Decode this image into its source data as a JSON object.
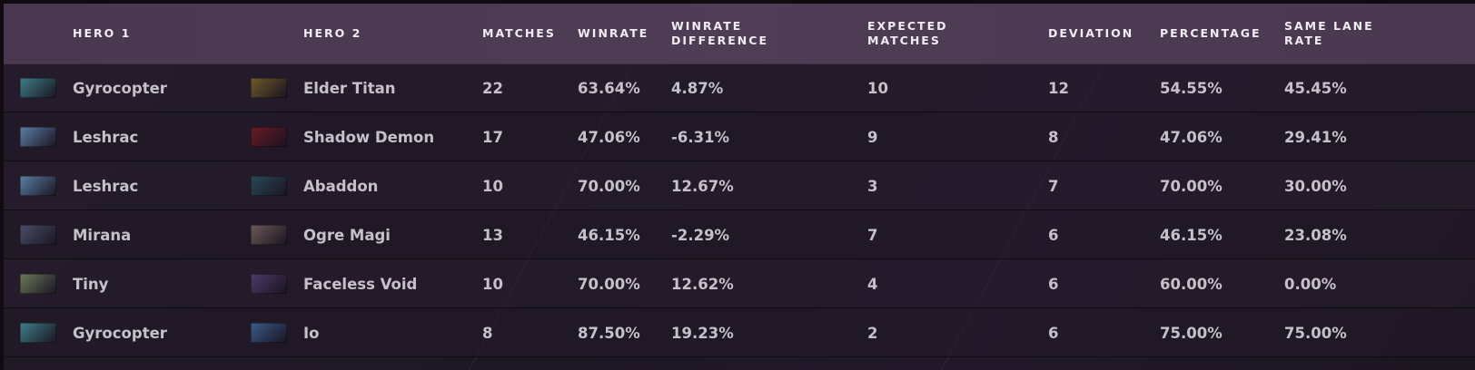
{
  "headers": {
    "hero1": "HERO 1",
    "hero2": "HERO 2",
    "matches": "MATCHES",
    "winrate": "WINRATE",
    "winrate_diff_line1": "WINRATE",
    "winrate_diff_line2": "DIFFERENCE",
    "expected_line1": "EXPECTED",
    "expected_line2": "MATCHES",
    "deviation": "DEVIATION",
    "percentage": "PERCENTAGE",
    "same_lane_line1": "SAME LANE",
    "same_lane_line2": "RATE"
  },
  "rows": [
    {
      "hero1": "Gyrocopter",
      "hero1_icon": "gyrocopter-portrait-icon",
      "hero1_color": "#3f7f8a",
      "hero2": "Elder Titan",
      "hero2_icon": "elder-titan-portrait-icon",
      "hero2_color": "#6e5a2a",
      "matches": "22",
      "winrate": "63.64%",
      "winrate_diff": "4.87%",
      "expected": "10",
      "deviation": "12",
      "percentage": "54.55%",
      "same_lane": "45.45%"
    },
    {
      "hero1": "Leshrac",
      "hero1_icon": "leshrac-portrait-icon",
      "hero1_color": "#5a7fa6",
      "hero2": "Shadow Demon",
      "hero2_icon": "shadow-demon-portrait-icon",
      "hero2_color": "#6a1a24",
      "matches": "17",
      "winrate": "47.06%",
      "winrate_diff": "-6.31%",
      "expected": "9",
      "deviation": "8",
      "percentage": "47.06%",
      "same_lane": "29.41%"
    },
    {
      "hero1": "Leshrac",
      "hero1_icon": "leshrac-portrait-icon",
      "hero1_color": "#5a7fa6",
      "hero2": "Abaddon",
      "hero2_icon": "abaddon-portrait-icon",
      "hero2_color": "#2a4a5a",
      "matches": "10",
      "winrate": "70.00%",
      "winrate_diff": "12.67%",
      "expected": "3",
      "deviation": "7",
      "percentage": "70.00%",
      "same_lane": "30.00%"
    },
    {
      "hero1": "Mirana",
      "hero1_icon": "mirana-portrait-icon",
      "hero1_color": "#4a4f6a",
      "hero2": "Ogre Magi",
      "hero2_icon": "ogre-magi-portrait-icon",
      "hero2_color": "#6a5a5a",
      "matches": "13",
      "winrate": "46.15%",
      "winrate_diff": "-2.29%",
      "expected": "7",
      "deviation": "6",
      "percentage": "46.15%",
      "same_lane": "23.08%"
    },
    {
      "hero1": "Tiny",
      "hero1_icon": "tiny-portrait-icon",
      "hero1_color": "#6a7a5a",
      "hero2": "Faceless Void",
      "hero2_icon": "faceless-void-portrait-icon",
      "hero2_color": "#4a3a6a",
      "matches": "10",
      "winrate": "70.00%",
      "winrate_diff": "12.62%",
      "expected": "4",
      "deviation": "6",
      "percentage": "60.00%",
      "same_lane": "0.00%"
    },
    {
      "hero1": "Gyrocopter",
      "hero1_icon": "gyrocopter-portrait-icon",
      "hero1_color": "#3f7f8a",
      "hero2": "Io",
      "hero2_icon": "io-portrait-icon",
      "hero2_color": "#3a5a8a",
      "matches": "8",
      "winrate": "87.50%",
      "winrate_diff": "19.23%",
      "expected": "2",
      "deviation": "6",
      "percentage": "75.00%",
      "same_lane": "75.00%"
    }
  ]
}
